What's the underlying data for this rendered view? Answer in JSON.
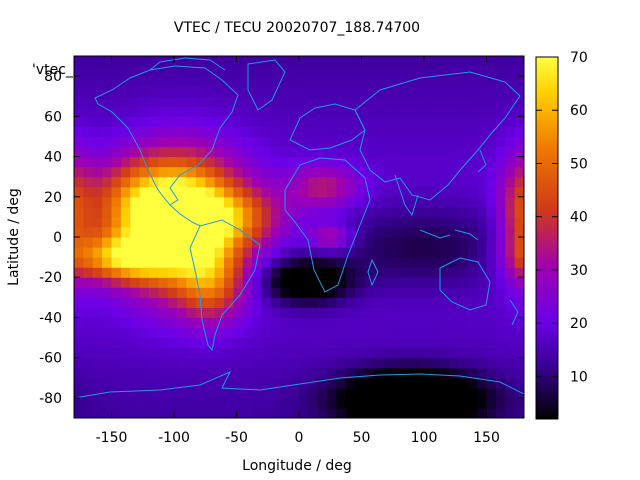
{
  "chart_data": {
    "type": "heatmap",
    "title": "VTEC / TECU 20020707_188.74700",
    "xlabel": "Longitude / deg",
    "ylabel": "Latitude / deg",
    "legend_key": "'vtec_",
    "xlim": [
      -180,
      180
    ],
    "ylim": [
      -90,
      90
    ],
    "x_ticks": [
      -150,
      -100,
      -50,
      0,
      50,
      100,
      150
    ],
    "y_ticks": [
      -80,
      -60,
      -40,
      -20,
      0,
      20,
      40,
      60,
      80
    ],
    "colorbar": {
      "range": [
        2,
        70
      ],
      "ticks": [
        10,
        20,
        30,
        40,
        50,
        60,
        70
      ]
    },
    "features": [
      {
        "lon": -95,
        "lat": 7,
        "value": 68,
        "sx": 35,
        "sy": 24
      },
      {
        "lon": -140,
        "lat": -10,
        "value": 55,
        "sx": 30,
        "sy": 8
      },
      {
        "lon": -120,
        "lat": 15,
        "value": 44,
        "sx": 35,
        "sy": 15
      },
      {
        "lon": -70,
        "lat": -22,
        "value": 40,
        "sx": 18,
        "sy": 14
      },
      {
        "lon": -55,
        "lat": 10,
        "value": 40,
        "sx": 30,
        "sy": 10
      },
      {
        "lon": 20,
        "lat": 25,
        "value": 35,
        "sx": 20,
        "sy": 8
      },
      {
        "lon": 25,
        "lat": 0,
        "value": 35,
        "sx": 12,
        "sy": 5
      },
      {
        "lon": 178,
        "lat": 10,
        "value": 40,
        "sx": 12,
        "sy": 22
      },
      {
        "lon": 90,
        "lat": -80,
        "value": -16,
        "sx": 40,
        "sy": 10
      },
      {
        "lon": 5,
        "lat": -22,
        "value": -8,
        "sx": 25,
        "sy": 8
      },
      {
        "lon": 100,
        "lat": -5,
        "value": 6,
        "sx": 60,
        "sy": 15
      }
    ],
    "background_value": 18,
    "map_overlay": "world coastlines"
  }
}
